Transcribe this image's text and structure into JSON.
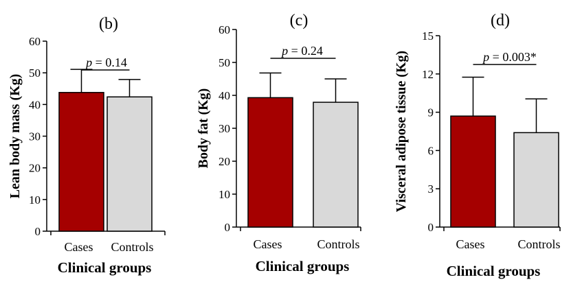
{
  "chart_data": [
    {
      "type": "bar",
      "title": "(b)",
      "categories": [
        "Cases",
        "Controls"
      ],
      "values": [
        43.8,
        42.4
      ],
      "errors": [
        7.3,
        5.5
      ],
      "ylabel": "Lean body mass (Kg)",
      "xlabel": "Clinical groups",
      "ylim": [
        0,
        60
      ],
      "yticks": [
        0,
        10,
        20,
        30,
        40,
        50,
        60
      ],
      "annotation": {
        "italic": "p",
        "text": " = 0.14"
      },
      "colors": [
        "#a50000",
        "#d9d9d9"
      ]
    },
    {
      "type": "bar",
      "title": "(c)",
      "categories": [
        "Cases",
        "Controls"
      ],
      "values": [
        39.3,
        37.9
      ],
      "errors": [
        7.5,
        7.1
      ],
      "ylabel": "Body fat (Kg)",
      "xlabel": "Clinical groups",
      "ylim": [
        0,
        60
      ],
      "yticks": [
        0,
        10,
        20,
        30,
        40,
        50,
        60
      ],
      "annotation": {
        "italic": "p",
        "text": " = 0.24"
      },
      "colors": [
        "#a50000",
        "#d9d9d9"
      ]
    },
    {
      "type": "bar",
      "title": "(d)",
      "categories": [
        "Cases",
        "Controls"
      ],
      "values": [
        8.7,
        7.4
      ],
      "errors": [
        3.05,
        2.65
      ],
      "ylabel": "Visceral adipose tissue (Kg)",
      "xlabel": "Clinical groups",
      "ylim": [
        0,
        15
      ],
      "yticks": [
        0,
        3,
        6,
        9,
        12,
        15
      ],
      "annotation": {
        "italic": "p",
        "text": " = 0.003*"
      },
      "colors": [
        "#a50000",
        "#d9d9d9"
      ]
    }
  ]
}
